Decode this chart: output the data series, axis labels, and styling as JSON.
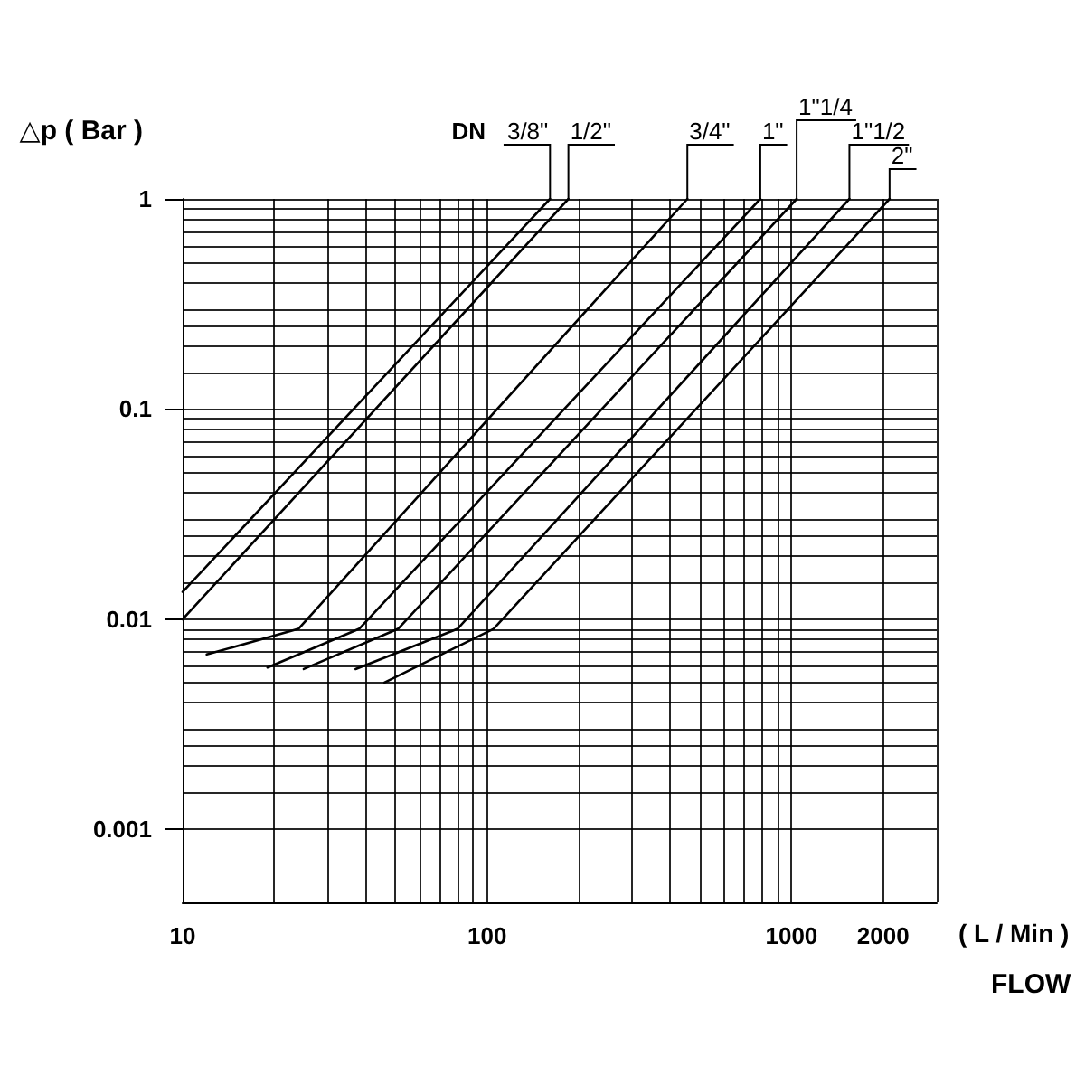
{
  "chart_data": {
    "type": "line",
    "ylabel": "△p ( Bar )",
    "xlabel": "FLOW",
    "legend_title": "DN",
    "annotations": [
      "( L / Min )"
    ],
    "log": "xy",
    "grid": true,
    "xlim": [
      10,
      3000
    ],
    "xticks": [
      10,
      {
        "value": 20,
        "label": null
      },
      {
        "value": 30,
        "label": null
      },
      {
        "value": 40,
        "label": null
      },
      {
        "value": 50,
        "label": null
      },
      {
        "value": 60,
        "label": null
      },
      {
        "value": 70,
        "label": null
      },
      {
        "value": 80,
        "label": null
      },
      {
        "value": 90,
        "label": null
      },
      100,
      {
        "value": 200,
        "label": null
      },
      {
        "value": 300,
        "label": null
      },
      {
        "value": 400,
        "label": null
      },
      {
        "value": 500,
        "label": null
      },
      {
        "value": 600,
        "label": null
      },
      {
        "value": 700,
        "label": null
      },
      {
        "value": 800,
        "label": null
      },
      {
        "value": 900,
        "label": null
      },
      1000,
      2000,
      {
        "value": 3000,
        "label": null
      }
    ],
    "ylim": [
      0.00045,
      1
    ],
    "yticks": [
      0.001,
      {
        "value": 0.0015,
        "label": null
      },
      {
        "value": 0.002,
        "label": null
      },
      {
        "value": 0.0025,
        "label": null
      },
      {
        "value": 0.003,
        "label": null
      },
      {
        "value": 0.004,
        "label": null
      },
      {
        "value": 0.005,
        "label": null
      },
      {
        "value": 0.006,
        "label": null
      },
      {
        "value": 0.007,
        "label": null
      },
      {
        "value": 0.008,
        "label": null
      },
      {
        "value": 0.009,
        "label": null
      },
      0.01,
      {
        "value": 0.015,
        "label": null
      },
      {
        "value": 0.02,
        "label": null
      },
      {
        "value": 0.025,
        "label": null
      },
      {
        "value": 0.03,
        "label": null
      },
      {
        "value": 0.04,
        "label": null
      },
      {
        "value": 0.05,
        "label": null
      },
      {
        "value": 0.06,
        "label": null
      },
      {
        "value": 0.07,
        "label": null
      },
      {
        "value": 0.08,
        "label": null
      },
      {
        "value": 0.09,
        "label": null
      },
      0.1,
      {
        "value": 0.15,
        "label": null
      },
      {
        "value": 0.2,
        "label": null
      },
      {
        "value": 0.25,
        "label": null
      },
      {
        "value": 0.3,
        "label": null
      },
      {
        "value": 0.4,
        "label": null
      },
      {
        "value": 0.5,
        "label": null
      },
      {
        "value": 0.6,
        "label": null
      },
      {
        "value": 0.7,
        "label": null
      },
      {
        "value": 0.8,
        "label": null
      },
      {
        "value": 0.9,
        "label": null
      },
      1
    ],
    "series": [
      {
        "name": "3/8\"",
        "color": "#000000",
        "x": [
          10,
          161
        ],
        "values": [
          0.0135,
          1
        ]
      },
      {
        "name": "1/2\"",
        "color": "#000000",
        "x": [
          10,
          185
        ],
        "values": [
          0.01,
          1
        ]
      },
      {
        "name": "3/4\"",
        "color": "#000000",
        "x": [
          12,
          24,
          455
        ],
        "values": [
          0.0068,
          0.009,
          1
        ]
      },
      {
        "name": "1\"",
        "color": "#000000",
        "x": [
          19,
          38,
          790
        ],
        "values": [
          0.0059,
          0.009,
          1
        ]
      },
      {
        "name": "1\"1/4",
        "color": "#000000",
        "x": [
          25,
          51,
          1040
        ],
        "values": [
          0.0058,
          0.009,
          1
        ]
      },
      {
        "name": "1\"1/2",
        "color": "#000000",
        "x": [
          37,
          80,
          1550
        ],
        "values": [
          0.0058,
          0.009,
          1
        ]
      },
      {
        "name": "2\"",
        "color": "#000000",
        "x": [
          46,
          105,
          2100
        ],
        "values": [
          0.005,
          0.009,
          1
        ]
      }
    ]
  }
}
